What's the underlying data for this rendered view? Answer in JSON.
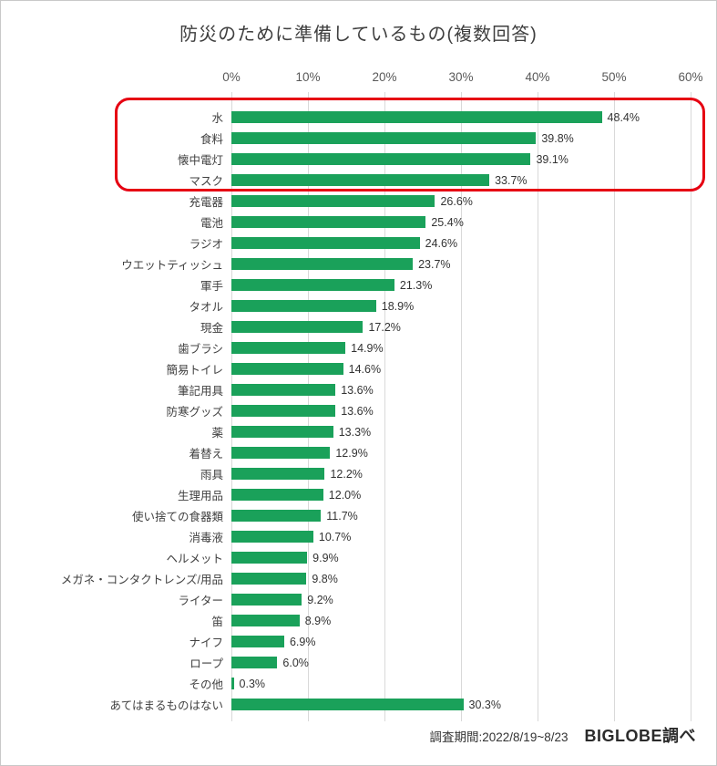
{
  "chart_data": {
    "type": "bar",
    "orientation": "horizontal",
    "title": "防災のために準備しているもの(複数回答)",
    "categories": [
      "水",
      "食料",
      "懐中電灯",
      "マスク",
      "充電器",
      "電池",
      "ラジオ",
      "ウエットティッシュ",
      "軍手",
      "タオル",
      "現金",
      "歯ブラシ",
      "簡易トイレ",
      "筆記用具",
      "防寒グッズ",
      "薬",
      "着替え",
      "雨具",
      "生理用品",
      "使い捨ての食器類",
      "消毒液",
      "ヘルメット",
      "メガネ・コンタクトレンズ/用品",
      "ライター",
      "笛",
      "ナイフ",
      "ロープ",
      "その他",
      "あてはまるものはない"
    ],
    "values": [
      48.4,
      39.8,
      39.1,
      33.7,
      26.6,
      25.4,
      24.6,
      23.7,
      21.3,
      18.9,
      17.2,
      14.9,
      14.6,
      13.6,
      13.6,
      13.3,
      12.9,
      12.2,
      12.0,
      11.7,
      10.7,
      9.9,
      9.8,
      9.2,
      8.9,
      6.9,
      6.0,
      0.3,
      30.3
    ],
    "x_ticks": [
      "0%",
      "10%",
      "20%",
      "30%",
      "40%",
      "50%",
      "60%"
    ],
    "xlim": [
      0,
      60
    ],
    "grid": true,
    "bar_color": "#1aa15a",
    "highlight": {
      "first_row": 0,
      "last_row": 3,
      "color": "#e60012"
    },
    "footer": {
      "survey_period": "調査期間:2022/8/19~8/23",
      "source": "BIGLOBE調べ"
    }
  }
}
